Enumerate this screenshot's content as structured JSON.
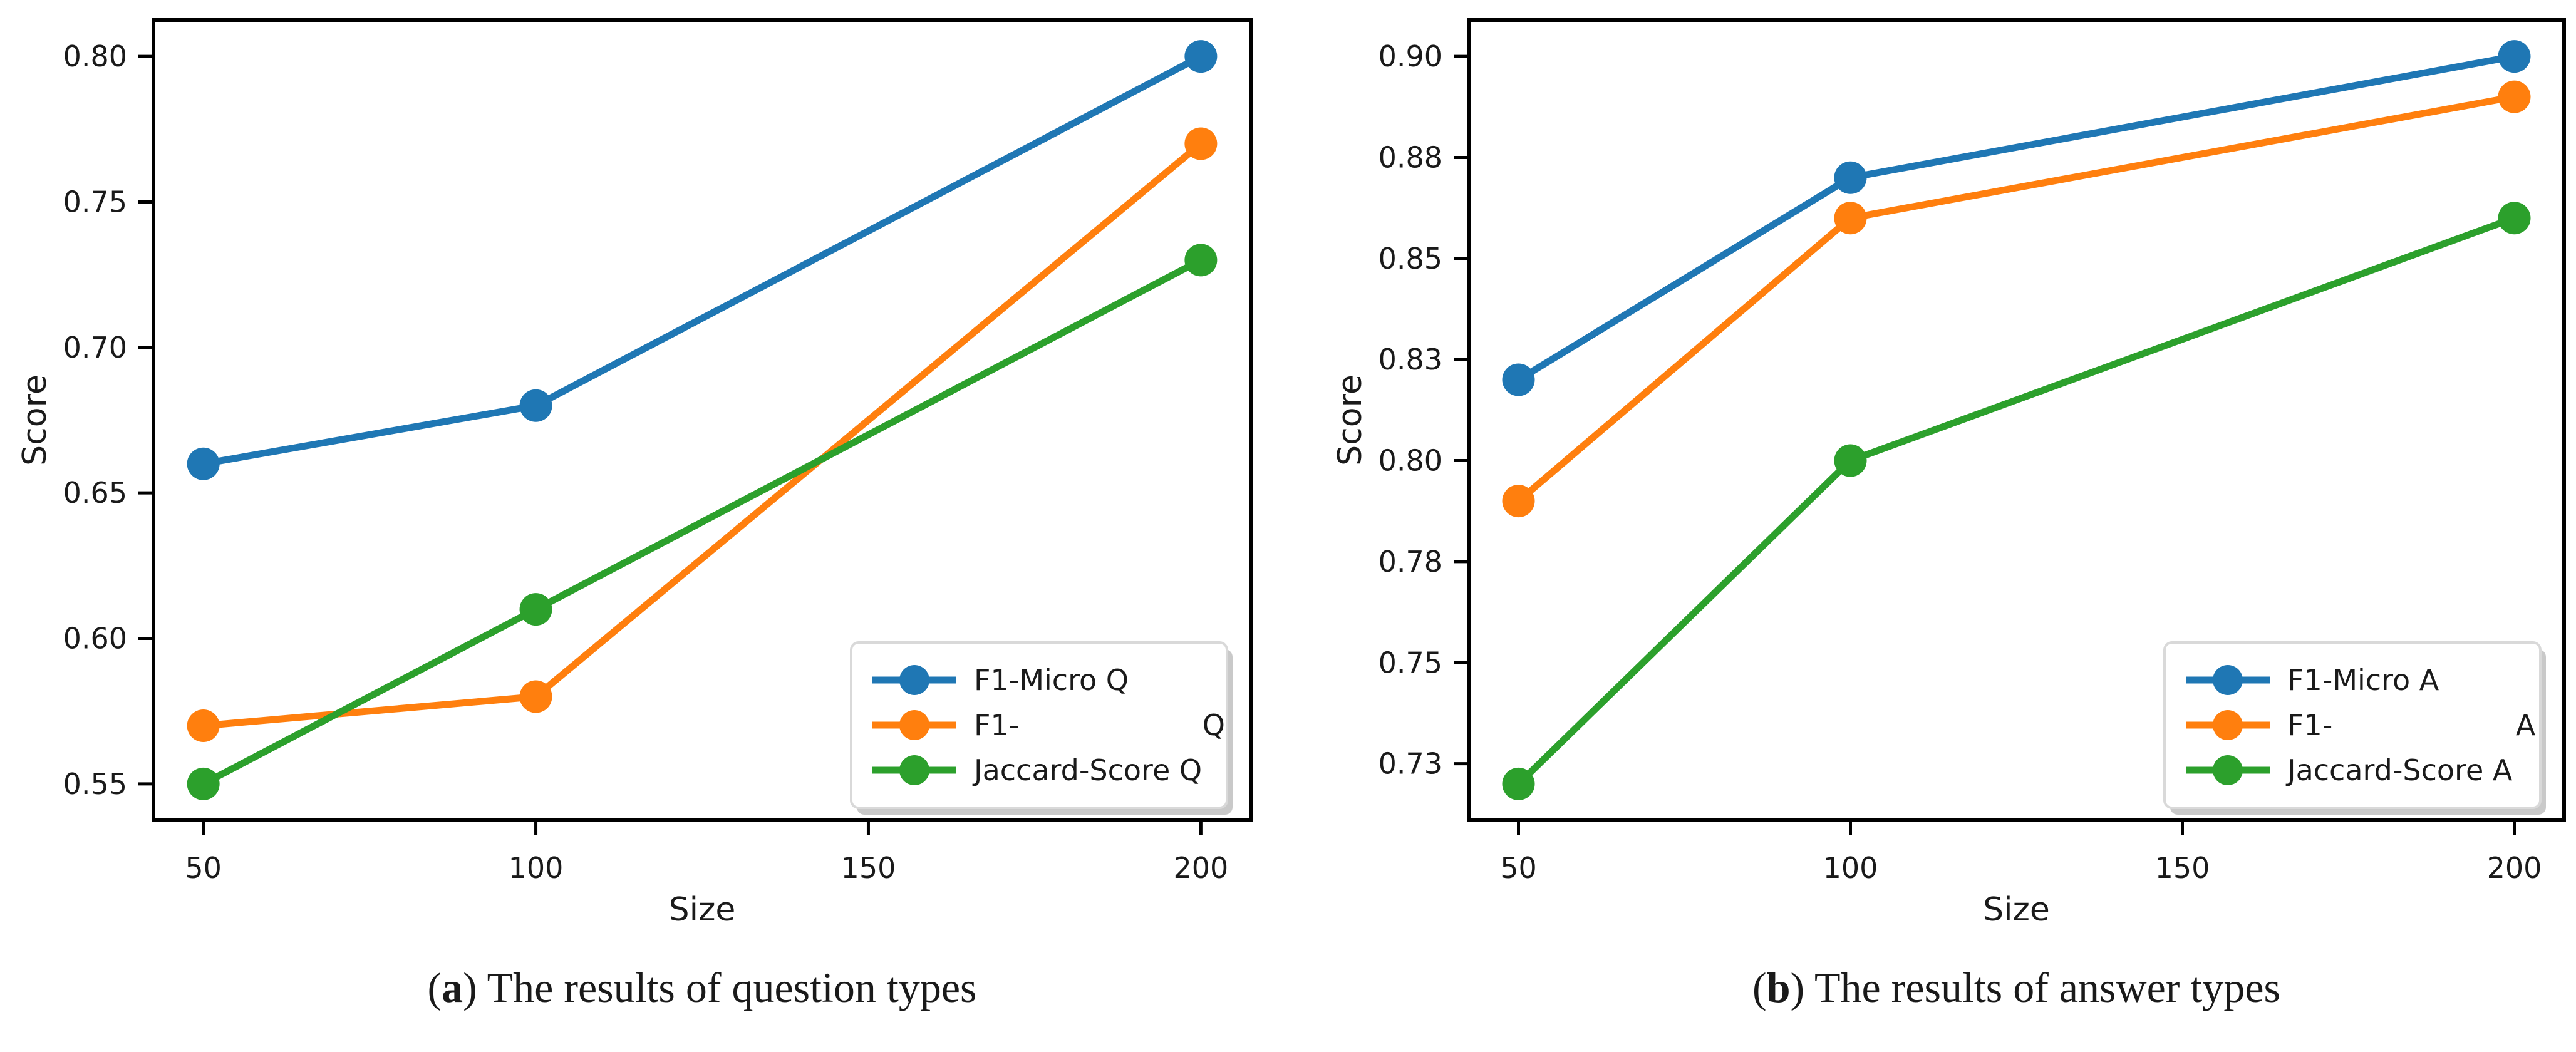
{
  "figure": {
    "captions": [
      {
        "open": "(",
        "letter": "a",
        "close": ")",
        "text": " The results of question types"
      },
      {
        "open": "(",
        "letter": "b",
        "close": ")",
        "text": " The results of answer types"
      }
    ]
  },
  "colors": {
    "series_blue": "#1f77b4",
    "series_orange": "#ff7f0e",
    "series_green": "#2ca02c",
    "text": "#1a1a1a",
    "axis": "#000000",
    "legend_border": "#d9d9d9",
    "legend_shadow": "#c9c9c9",
    "background": "#ffffff"
  },
  "chart_data": [
    {
      "type": "line",
      "caption": "(a) The results of question types",
      "xlabel": "Size",
      "ylabel": "Score",
      "x": [
        50,
        100,
        200
      ],
      "xlim": [
        42.5,
        207.5
      ],
      "ylim": [
        0.5375,
        0.8125
      ],
      "grid": false,
      "legend_position": "lower right",
      "xticks": [
        {
          "value": 50,
          "label": "50"
        },
        {
          "value": 100,
          "label": "100"
        },
        {
          "value": 150,
          "label": "150"
        },
        {
          "value": 200,
          "label": "200"
        }
      ],
      "yticks": [
        {
          "value": 0.8,
          "label": "0.80"
        },
        {
          "value": 0.75,
          "label": "0.75"
        },
        {
          "value": 0.7,
          "label": "0.70"
        },
        {
          "value": 0.65,
          "label": "0.65"
        },
        {
          "value": 0.6,
          "label": "0.60"
        },
        {
          "value": 0.55,
          "label": "0.55"
        }
      ],
      "series": [
        {
          "name": "F1-Micro Q",
          "color": "#1f77b4",
          "marker": "circle",
          "values": [
            0.66,
            0.68,
            0.8
          ]
        },
        {
          "name": "F1-                    Q",
          "color": "#ff7f0e",
          "marker": "circle",
          "values": [
            0.57,
            0.58,
            0.77
          ]
        },
        {
          "name": "Jaccard-Score Q",
          "color": "#2ca02c",
          "marker": "circle",
          "values": [
            0.55,
            0.61,
            0.73
          ]
        }
      ]
    },
    {
      "type": "line",
      "caption": "(b) The results of answer types",
      "xlabel": "Size",
      "ylabel": "Score",
      "x": [
        50,
        100,
        200
      ],
      "xlim": [
        42.5,
        207.5
      ],
      "ylim": [
        0.711,
        0.909
      ],
      "grid": false,
      "legend_position": "lower right",
      "xticks": [
        {
          "value": 50,
          "label": "50"
        },
        {
          "value": 100,
          "label": "100"
        },
        {
          "value": 150,
          "label": "150"
        },
        {
          "value": 200,
          "label": "200"
        }
      ],
      "yticks": [
        {
          "value": 0.9,
          "label": "0.90"
        },
        {
          "value": 0.875,
          "label": "0.88"
        },
        {
          "value": 0.85,
          "label": "0.85"
        },
        {
          "value": 0.825,
          "label": "0.83"
        },
        {
          "value": 0.8,
          "label": "0.80"
        },
        {
          "value": 0.775,
          "label": "0.78"
        },
        {
          "value": 0.75,
          "label": "0.75"
        },
        {
          "value": 0.725,
          "label": "0.73"
        }
      ],
      "series": [
        {
          "name": "F1-Micro A",
          "color": "#1f77b4",
          "marker": "circle",
          "values": [
            0.82,
            0.87,
            0.9
          ]
        },
        {
          "name": "F1-                    A",
          "color": "#ff7f0e",
          "marker": "circle",
          "values": [
            0.79,
            0.86,
            0.89
          ]
        },
        {
          "name": "Jaccard-Score A",
          "color": "#2ca02c",
          "marker": "circle",
          "values": [
            0.72,
            0.8,
            0.86
          ]
        }
      ]
    }
  ]
}
